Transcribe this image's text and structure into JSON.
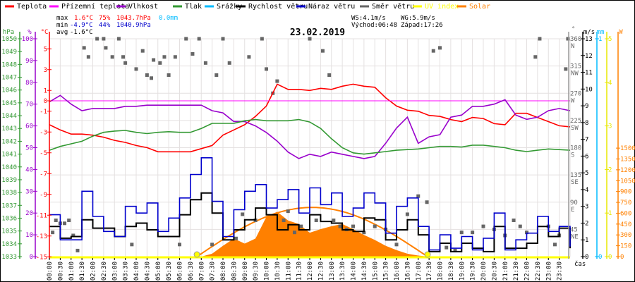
{
  "legend": [
    {
      "label": "Teplota",
      "color": "#ff0000"
    },
    {
      "label": "Přízemní teplota",
      "color": "#ff00ff"
    },
    {
      "label": "Vlhkost",
      "color": "#9900cc"
    },
    {
      "label": "Tlak",
      "color": "#339933"
    },
    {
      "label": "Srážky",
      "color": "#00bbff"
    },
    {
      "label": "Rychlost větru",
      "color": "#000000"
    },
    {
      "label": "Náraz větru",
      "color": "#0000cc"
    },
    {
      "label": "Směr větru",
      "color": "#666666"
    },
    {
      "label": "UV index",
      "color": "#ffff00"
    },
    {
      "label": "Solar",
      "color": "#ff8000"
    }
  ],
  "stats": {
    "max_label": "max",
    "max_temp": "1.6°C",
    "max_hum": "75%",
    "max_press": "1043.7hPa",
    "max_rain": "0.0mm",
    "min_label": "min",
    "min_temp": "-4.9°C",
    "min_hum": "44%",
    "min_press": "1040.9hPa",
    "avg_label": "avg",
    "avg_temp": "-1.6°C",
    "ws": "WS:4.1m/s",
    "wg": "WG:5.9m/s",
    "sunrise": "Východ:06:48",
    "sunset": "Západ:17:26"
  },
  "chart_data": {
    "type": "line",
    "title": "23.02.2019",
    "xlabel": "čas",
    "x_ticks": [
      "00:00",
      "00:30",
      "01:00",
      "01:30",
      "02:00",
      "02:30",
      "03:00",
      "03:30",
      "04:00",
      "04:30",
      "05:00",
      "05:30",
      "06:00",
      "06:30",
      "07:00",
      "07:30",
      "08:00",
      "08:30",
      "09:00",
      "09:30",
      "10:00",
      "10:30",
      "11:00",
      "11:30",
      "12:00",
      "12:30",
      "13:00",
      "13:30",
      "14:00",
      "14:30",
      "15:00",
      "15:30",
      "16:00",
      "16:30",
      "17:00",
      "17:30",
      "18:00",
      "18:30",
      "19:00",
      "19:30",
      "20:00",
      "20:30",
      "21:00",
      "21:30",
      "22:00",
      "22:30",
      "23:00",
      "23:30"
    ],
    "axes": {
      "hpa": {
        "unit": "hPa",
        "range": [
          1033,
          1050
        ],
        "ticks": [
          "1033",
          "1034",
          "1035",
          "1036",
          "1037",
          "1038",
          "1039",
          "1040",
          "1041",
          "1042",
          "1043",
          "1044",
          "1045",
          "1046",
          "1047",
          "1048",
          "1049",
          "1050"
        ]
      },
      "pct": {
        "unit": "%",
        "range": [
          0,
          100
        ],
        "ticks": [
          "0",
          "10",
          "20",
          "30",
          "40",
          "50",
          "60",
          "70",
          "80",
          "90",
          "100"
        ]
      },
      "temp": {
        "unit": "°C",
        "range": [
          -15,
          6
        ],
        "ticks": [
          "-15",
          "-13",
          "-11",
          "-9",
          "-7",
          "-5",
          "-3",
          "-1",
          "0",
          "1",
          "3",
          "5"
        ]
      },
      "dir": {
        "unit": "°",
        "range": [
          0,
          360
        ],
        "ticks": [
          "45",
          "90",
          "135",
          "180",
          "225",
          "270",
          "315",
          "360"
        ],
        "compass": [
          "NE",
          "E",
          "SE",
          "S",
          "SW",
          "W",
          "NW",
          "N"
        ]
      },
      "ms": {
        "unit": "m/s",
        "range": [
          0,
          13
        ],
        "ticks": [
          "0",
          "1",
          "2",
          "3",
          "4",
          "5",
          "6",
          "7",
          "8",
          "9",
          "10",
          "11",
          "12",
          "13"
        ]
      },
      "mm": {
        "unit": "mm",
        "range": [
          0,
          1
        ],
        "ticks": [
          "0",
          "1"
        ]
      },
      "uv": {
        "unit": "",
        "range": [
          0,
          5
        ],
        "ticks": [
          "0",
          "1",
          "2",
          "3",
          "4",
          "5"
        ]
      },
      "w": {
        "unit": "W",
        "range": [
          0,
          1500
        ],
        "ticks": [
          "0",
          "150",
          "300",
          "450",
          "600",
          "750",
          "900",
          "1050",
          "1200",
          "1350",
          "1500"
        ]
      }
    },
    "hours": [
      0,
      0.5,
      1,
      1.5,
      2,
      2.5,
      3,
      3.5,
      4,
      4.5,
      5,
      5.5,
      6,
      6.5,
      7,
      7.5,
      8,
      8.5,
      9,
      9.5,
      10,
      10.5,
      11,
      11.5,
      12,
      12.5,
      13,
      13.5,
      14,
      14.5,
      15,
      15.5,
      16,
      16.5,
      17,
      17.5,
      18,
      18.5,
      19,
      19.5,
      20,
      20.5,
      21,
      21.5,
      22,
      22.5,
      23,
      23.5,
      24
    ],
    "series": [
      {
        "name": "Teplota",
        "axis": "temp",
        "values": [
          -2.3,
          -2.8,
          -3.2,
          -3.2,
          -3.3,
          -3.5,
          -3.8,
          -4.0,
          -4.3,
          -4.5,
          -4.9,
          -4.9,
          -4.9,
          -4.9,
          -4.6,
          -4.3,
          -3.3,
          -2.8,
          -2.3,
          -1.5,
          -0.5,
          1.6,
          1.1,
          1.1,
          1.0,
          1.2,
          1.1,
          1.4,
          1.6,
          1.4,
          1.3,
          0.3,
          -0.5,
          -0.9,
          -1.0,
          -1.4,
          -1.5,
          -1.8,
          -2.0,
          -1.6,
          -1.7,
          -2.2,
          -2.3,
          -1.2,
          -1.2,
          -1.6,
          -2.0,
          -2.4,
          -2.5
        ]
      },
      {
        "name": "Přízemní teplota",
        "axis": "temp",
        "values": [
          0,
          0,
          0,
          0,
          0,
          0,
          0,
          0,
          0,
          0,
          0,
          0,
          0,
          0,
          0,
          0,
          0,
          0,
          0,
          0,
          0,
          0,
          0,
          0,
          0,
          0,
          0,
          0,
          0,
          0,
          0,
          0,
          0,
          0,
          0,
          0,
          0,
          0,
          0,
          0,
          0,
          0,
          0,
          0,
          0,
          0,
          0,
          0,
          0
        ]
      },
      {
        "name": "Vlhkost",
        "axis": "pct",
        "values": [
          71,
          74,
          70,
          67,
          68,
          68,
          68,
          69,
          69,
          69.5,
          69.5,
          69.5,
          69.5,
          69.5,
          69.5,
          67,
          66,
          62,
          62,
          60,
          57,
          53,
          48,
          45,
          47,
          46,
          48,
          47,
          46,
          45,
          46,
          52,
          59,
          64,
          52,
          55,
          56,
          64,
          65,
          69,
          69,
          70,
          72,
          65,
          63,
          64,
          67,
          68,
          67
        ]
      },
      {
        "name": "Tlak",
        "axis": "hpa",
        "values": [
          1041.3,
          1041.6,
          1041.8,
          1042.0,
          1042.4,
          1042.7,
          1042.8,
          1042.85,
          1042.7,
          1042.6,
          1042.7,
          1042.75,
          1042.7,
          1042.7,
          1043.0,
          1043.4,
          1043.4,
          1043.4,
          1043.6,
          1043.7,
          1043.6,
          1043.6,
          1043.6,
          1043.7,
          1043.5,
          1043.0,
          1042.2,
          1041.5,
          1041.1,
          1041.0,
          1041.1,
          1041.2,
          1041.3,
          1041.35,
          1041.4,
          1041.5,
          1041.6,
          1041.6,
          1041.55,
          1041.7,
          1041.7,
          1041.6,
          1041.5,
          1041.3,
          1041.2,
          1041.3,
          1041.4,
          1041.35,
          1041.3
        ]
      },
      {
        "name": "Rychlost větru",
        "axis": "ms",
        "values": [
          1.8,
          1.1,
          1.2,
          2.2,
          1.7,
          1.7,
          1.2,
          1.8,
          2.0,
          1.6,
          1.2,
          1.2,
          2.5,
          3.4,
          3.8,
          2.6,
          1.0,
          1.6,
          2.2,
          2.9,
          2.5,
          1.6,
          1.9,
          1.6,
          2.5,
          2.1,
          2.0,
          1.6,
          1.5,
          2.3,
          2.2,
          1.0,
          1.6,
          2.2,
          1.3,
          0.3,
          0.8,
          0.3,
          0.8,
          0.5,
          0.3,
          1.8,
          0.5,
          0.5,
          0.8,
          1.8,
          1.2,
          1.7,
          0.5
        ]
      },
      {
        "name": "Náraz větru",
        "axis": "ms",
        "values": [
          2.5,
          1.0,
          1.0,
          3.9,
          2.4,
          1.5,
          1.2,
          3.0,
          2.6,
          3.2,
          1.5,
          2.3,
          3.5,
          4.9,
          5.9,
          3.3,
          1.2,
          2.8,
          3.9,
          4.3,
          2.9,
          3.4,
          4.0,
          2.6,
          4.1,
          3.1,
          3.8,
          2.4,
          2.9,
          3.8,
          3.2,
          1.4,
          3.0,
          3.5,
          1.8,
          0.4,
          1.3,
          0.5,
          1.2,
          0.4,
          1.1,
          2.6,
          0.4,
          1.0,
          1.4,
          2.4,
          1.5,
          1.8,
          0.6
        ]
      },
      {
        "name": "Solar",
        "axis": "w",
        "values": [
          0,
          0,
          0,
          0,
          0,
          0,
          0,
          0,
          0,
          0,
          0,
          0,
          0,
          0,
          0,
          40,
          150,
          250,
          180,
          250,
          550,
          620,
          500,
          450,
          330,
          380,
          420,
          450,
          380,
          300,
          230,
          150,
          90,
          40,
          15,
          0,
          0,
          0,
          0,
          0,
          0,
          0,
          0,
          0,
          0,
          0,
          0,
          0,
          0
        ]
      }
    ],
    "solar_theoretical_peak": 680,
    "sunrise_h": 6.8,
    "sunset_h": 17.43,
    "uv_points": [
      [
        6.8,
        0
      ],
      [
        17.43,
        0
      ]
    ],
    "wind_direction": [
      [
        0.15,
        40
      ],
      [
        0.3,
        60
      ],
      [
        0.5,
        55
      ],
      [
        0.7,
        55
      ],
      [
        0.9,
        60
      ],
      [
        1.1,
        35
      ],
      [
        1.3,
        10
      ],
      [
        1.6,
        345
      ],
      [
        1.8,
        330
      ],
      [
        2.2,
        360
      ],
      [
        2.5,
        360
      ],
      [
        2.6,
        345
      ],
      [
        2.9,
        330
      ],
      [
        3.2,
        360
      ],
      [
        3.4,
        330
      ],
      [
        3.5,
        320
      ],
      [
        3.8,
        20
      ],
      [
        4.0,
        310
      ],
      [
        4.3,
        340
      ],
      [
        4.5,
        300
      ],
      [
        4.7,
        295
      ],
      [
        4.8,
        325
      ],
      [
        5.1,
        320
      ],
      [
        5.3,
        330
      ],
      [
        5.5,
        300
      ],
      [
        5.8,
        330
      ],
      [
        6.0,
        20
      ],
      [
        6.3,
        360
      ],
      [
        6.6,
        335
      ],
      [
        6.9,
        360
      ],
      [
        7.2,
        320
      ],
      [
        7.5,
        20
      ],
      [
        7.7,
        300
      ],
      [
        8.0,
        360
      ],
      [
        8.3,
        320
      ],
      [
        8.6,
        30
      ],
      [
        8.9,
        70
      ],
      [
        9.2,
        330
      ],
      [
        9.5,
        60
      ],
      [
        9.8,
        360
      ],
      [
        10.0,
        310
      ],
      [
        10.3,
        270
      ],
      [
        10.5,
        290
      ],
      [
        10.8,
        60
      ],
      [
        11.0,
        75
      ],
      [
        11.3,
        40
      ],
      [
        11.6,
        50
      ],
      [
        12.0,
        360
      ],
      [
        12.3,
        60
      ],
      [
        12.6,
        340
      ],
      [
        12.9,
        300
      ],
      [
        13.1,
        60
      ],
      [
        13.4,
        50
      ],
      [
        13.7,
        45
      ],
      [
        14.0,
        50
      ],
      [
        14.5,
        40
      ],
      [
        15.0,
        50
      ],
      [
        15.5,
        45
      ],
      [
        16.0,
        20
      ],
      [
        16.5,
        70
      ],
      [
        17.0,
        100
      ],
      [
        17.4,
        90
      ],
      [
        17.7,
        340
      ],
      [
        18.0,
        345
      ],
      [
        18.3,
        15
      ],
      [
        18.7,
        10
      ],
      [
        19.0,
        40
      ],
      [
        19.5,
        40
      ],
      [
        20.0,
        50
      ],
      [
        20.5,
        45
      ],
      [
        21.0,
        35
      ],
      [
        21.4,
        60
      ],
      [
        21.7,
        50
      ],
      [
        22.0,
        40
      ],
      [
        22.4,
        330
      ],
      [
        22.6,
        360
      ],
      [
        23.0,
        50
      ],
      [
        23.3,
        20
      ],
      [
        23.5,
        35
      ],
      [
        23.8,
        310
      ],
      [
        23.9,
        360
      ]
    ]
  }
}
